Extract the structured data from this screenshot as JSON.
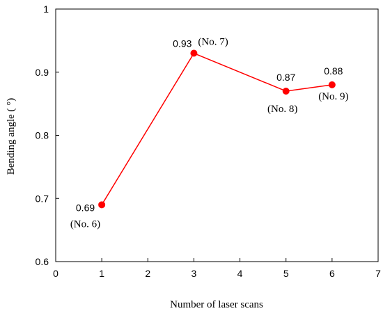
{
  "chart_data": {
    "type": "line",
    "xlabel": "Number of laser scans",
    "ylabel": "Bending angle ( °)",
    "xlim": [
      0,
      7
    ],
    "ylim": [
      0.6,
      1.0
    ],
    "x_ticks": [
      "0",
      "1",
      "2",
      "3",
      "4",
      "5",
      "6",
      "7"
    ],
    "y_ticks": [
      "0.6",
      "0.7",
      "0.8",
      "0.9",
      "1"
    ],
    "grid": false,
    "series": [
      {
        "color": "#ff0000",
        "points": [
          {
            "x": 1,
            "y": 0.69,
            "label": "0.69",
            "sample": "(No. 6)"
          },
          {
            "x": 3,
            "y": 0.93,
            "label": "0.93",
            "sample": "(No. 7)"
          },
          {
            "x": 5,
            "y": 0.87,
            "label": "0.87",
            "sample": "(No. 8)"
          },
          {
            "x": 6,
            "y": 0.88,
            "label": "0.88",
            "sample": "(No. 9)"
          }
        ]
      }
    ]
  }
}
